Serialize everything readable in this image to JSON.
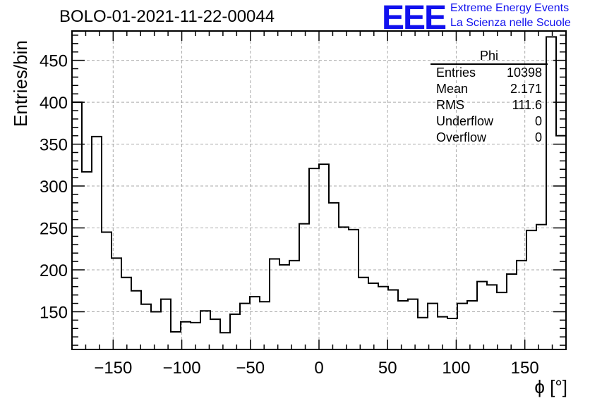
{
  "title": "BOLO-01-2021-11-22-00044",
  "logo": {
    "mark": "EEE",
    "line1": "Extreme Energy Events",
    "line2": "La Scienza nelle Scuole",
    "color": "#1111ee"
  },
  "stats": {
    "name": "Phi",
    "rows": [
      {
        "label": "Entries",
        "value": "10398"
      },
      {
        "label": "Mean",
        "value": "2.171"
      },
      {
        "label": "RMS",
        "value": "111.6"
      },
      {
        "label": "Underflow",
        "value": "0"
      },
      {
        "label": "Overflow",
        "value": "0"
      }
    ]
  },
  "chart_data": {
    "type": "bar",
    "histogram": true,
    "title": "BOLO-01-2021-11-22-00044",
    "xlabel": "ϕ [°]",
    "ylabel": "Entries/bin",
    "xlim": [
      -180,
      180
    ],
    "ylim": [
      105,
      485
    ],
    "bin_width": 7.2,
    "x_ticks": [
      -150,
      -100,
      -50,
      0,
      50,
      100,
      150
    ],
    "x_tick_labels": [
      "−150",
      "−100",
      "−50",
      "0",
      "50",
      "100",
      "150"
    ],
    "y_ticks": [
      150,
      200,
      250,
      300,
      350,
      400,
      450
    ],
    "grid": true,
    "values": [
      400,
      317,
      359,
      245,
      214,
      191,
      175,
      159,
      150,
      165,
      126,
      138,
      137,
      151,
      141,
      125,
      147,
      160,
      168,
      162,
      213,
      206,
      211,
      255,
      321,
      326,
      280,
      251,
      248,
      191,
      184,
      180,
      176,
      163,
      165,
      143,
      160,
      144,
      142,
      160,
      163,
      186,
      182,
      173,
      195,
      211,
      247,
      254,
      478,
      360
    ]
  }
}
